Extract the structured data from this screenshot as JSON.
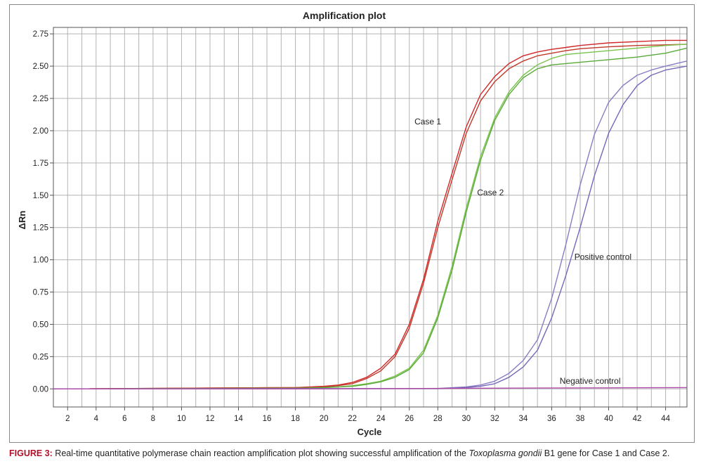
{
  "figure": {
    "caption_label": "FIGURE 3:",
    "caption_pre": " Real-time quantitative polymerase chain reaction amplification plot showing successful amplification of the ",
    "caption_italic": "Toxoplasma gondii",
    "caption_post": " B1 gene for Case 1 and Case 2."
  },
  "chart_data": {
    "type": "line",
    "title": "Amplification plot",
    "xlabel": "Cycle",
    "ylabel": "ΔRn",
    "xlim": [
      1,
      45.5
    ],
    "ylim": [
      -0.14,
      2.8
    ],
    "xticks": [
      2,
      4,
      6,
      8,
      10,
      12,
      14,
      16,
      18,
      20,
      22,
      24,
      26,
      28,
      30,
      32,
      34,
      36,
      38,
      40,
      42,
      44
    ],
    "yticks": [
      "0.00",
      "0.25",
      "0.50",
      "0.75",
      "1.00",
      "1.25",
      "1.50",
      "1.75",
      "2.00",
      "2.25",
      "2.50",
      "2.75"
    ],
    "grid": true,
    "annotations": [
      {
        "text": "Case 1",
        "x": 27.3,
        "y": 2.05
      },
      {
        "text": "Case 2",
        "x": 31.7,
        "y": 1.5
      },
      {
        "text": "Positive control",
        "x": 39.6,
        "y": 1.0
      },
      {
        "text": "Negative control",
        "x": 38.7,
        "y": 0.04
      }
    ],
    "series": [
      {
        "color": "#d02828",
        "x": [
          1,
          18,
          20,
          21,
          22,
          23,
          24,
          25,
          26,
          27,
          28,
          29,
          30,
          31,
          32,
          33,
          34,
          35,
          36,
          37,
          38,
          40,
          42,
          44,
          45.5
        ],
        "y": [
          0.0,
          0.01,
          0.02,
          0.03,
          0.05,
          0.09,
          0.16,
          0.27,
          0.5,
          0.85,
          1.3,
          1.67,
          2.03,
          2.28,
          2.42,
          2.52,
          2.58,
          2.61,
          2.63,
          2.645,
          2.66,
          2.68,
          2.69,
          2.7,
          2.7
        ]
      },
      {
        "color": "#c03a2a",
        "x": [
          1,
          18,
          20,
          21,
          22,
          23,
          24,
          25,
          26,
          27,
          28,
          29,
          30,
          31,
          32,
          33,
          34,
          35,
          36,
          37,
          38,
          40,
          42,
          44,
          45.5
        ],
        "y": [
          0.0,
          0.01,
          0.015,
          0.025,
          0.04,
          0.08,
          0.14,
          0.25,
          0.47,
          0.82,
          1.25,
          1.62,
          1.98,
          2.23,
          2.38,
          2.48,
          2.54,
          2.58,
          2.6,
          2.62,
          2.635,
          2.65,
          2.66,
          2.665,
          2.67
        ]
      },
      {
        "color": "#7ac44a",
        "x": [
          1,
          18,
          20,
          21,
          22,
          23,
          24,
          25,
          26,
          27,
          28,
          29,
          30,
          31,
          32,
          33,
          34,
          35,
          36,
          37,
          38,
          40,
          42,
          44,
          45.5
        ],
        "y": [
          0.0,
          0.005,
          0.01,
          0.015,
          0.025,
          0.04,
          0.06,
          0.1,
          0.16,
          0.3,
          0.57,
          0.95,
          1.4,
          1.8,
          2.1,
          2.3,
          2.43,
          2.51,
          2.56,
          2.59,
          2.6,
          2.62,
          2.64,
          2.66,
          2.67
        ]
      },
      {
        "color": "#5aaa3a",
        "x": [
          1,
          18,
          20,
          21,
          22,
          23,
          24,
          25,
          26,
          27,
          28,
          29,
          30,
          31,
          32,
          33,
          34,
          35,
          36,
          37,
          38,
          40,
          42,
          44,
          45.5
        ],
        "y": [
          0.0,
          0.005,
          0.01,
          0.015,
          0.02,
          0.035,
          0.055,
          0.09,
          0.15,
          0.28,
          0.55,
          0.92,
          1.37,
          1.77,
          2.08,
          2.28,
          2.41,
          2.48,
          2.51,
          2.52,
          2.53,
          2.55,
          2.57,
          2.6,
          2.64
        ]
      },
      {
        "color": "#8a7cc4",
        "x": [
          1,
          28,
          30,
          31,
          32,
          33,
          34,
          35,
          36,
          37,
          38,
          39,
          40,
          41,
          42,
          43,
          44,
          45.5
        ],
        "y": [
          0.0,
          0.003,
          0.015,
          0.03,
          0.06,
          0.12,
          0.22,
          0.38,
          0.7,
          1.12,
          1.58,
          1.97,
          2.22,
          2.35,
          2.43,
          2.47,
          2.5,
          2.54
        ]
      },
      {
        "color": "#7468b8",
        "x": [
          1,
          28,
          30,
          31,
          32,
          33,
          34,
          35,
          36,
          37,
          38,
          39,
          40,
          41,
          42,
          43,
          44,
          45.5
        ],
        "y": [
          0.0,
          0.002,
          0.01,
          0.02,
          0.04,
          0.09,
          0.17,
          0.3,
          0.55,
          0.88,
          1.25,
          1.65,
          1.98,
          2.2,
          2.35,
          2.43,
          2.47,
          2.5
        ]
      },
      {
        "color": "#b04aa8",
        "x": [
          1,
          20,
          30,
          40,
          45.5
        ],
        "y": [
          0.0,
          0.0,
          0.005,
          0.008,
          0.01
        ]
      }
    ]
  }
}
